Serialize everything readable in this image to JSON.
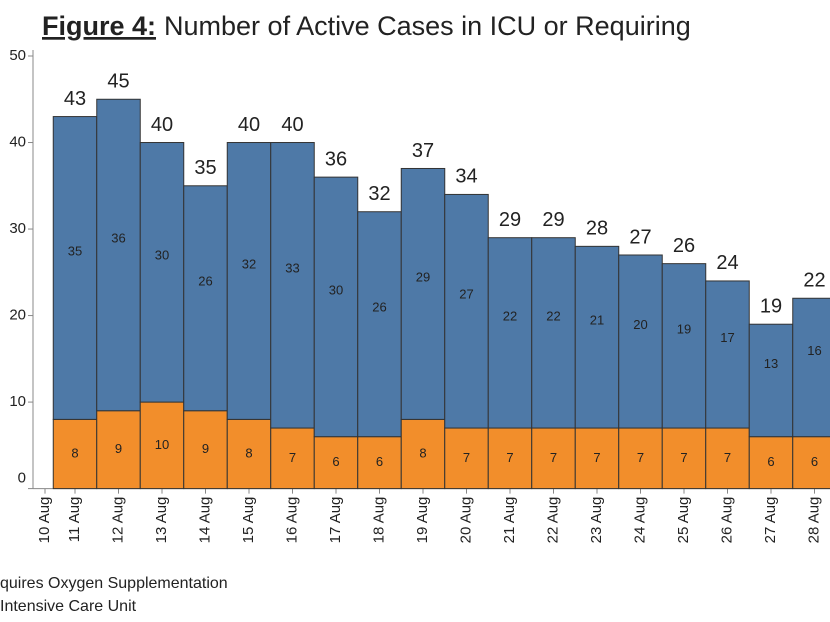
{
  "chart_data": {
    "type": "stacked_bar",
    "title_label": "Figure 4:",
    "title": "Number of Active Cases in ICU or Requiring",
    "categories": [
      "10 Aug",
      "11 Aug",
      "12 Aug",
      "13 Aug",
      "14 Aug",
      "15 Aug",
      "16 Aug",
      "17 Aug",
      "18 Aug",
      "19 Aug",
      "20 Aug",
      "21 Aug",
      "22 Aug",
      "23 Aug",
      "24 Aug",
      "25 Aug",
      "26 Aug",
      "27 Aug",
      "28 Aug"
    ],
    "series": [
      {
        "name": "Intensive Care Unit",
        "color": "#f28e2b",
        "values": [
          null,
          8,
          9,
          10,
          9,
          8,
          7,
          6,
          6,
          8,
          7,
          7,
          7,
          7,
          7,
          7,
          7,
          6,
          6
        ]
      },
      {
        "name": "quires Oxygen Supplementation",
        "color": "#4e79a7",
        "values": [
          null,
          35,
          36,
          30,
          26,
          32,
          33,
          30,
          26,
          29,
          27,
          22,
          22,
          21,
          20,
          19,
          17,
          13,
          16
        ]
      }
    ],
    "totals": [
      null,
      43,
      45,
      40,
      35,
      40,
      40,
      36,
      32,
      37,
      34,
      29,
      29,
      28,
      27,
      26,
      24,
      19,
      22
    ],
    "ylim": [
      0,
      50
    ],
    "yticks": [
      0,
      10,
      20,
      30,
      40,
      50
    ]
  }
}
